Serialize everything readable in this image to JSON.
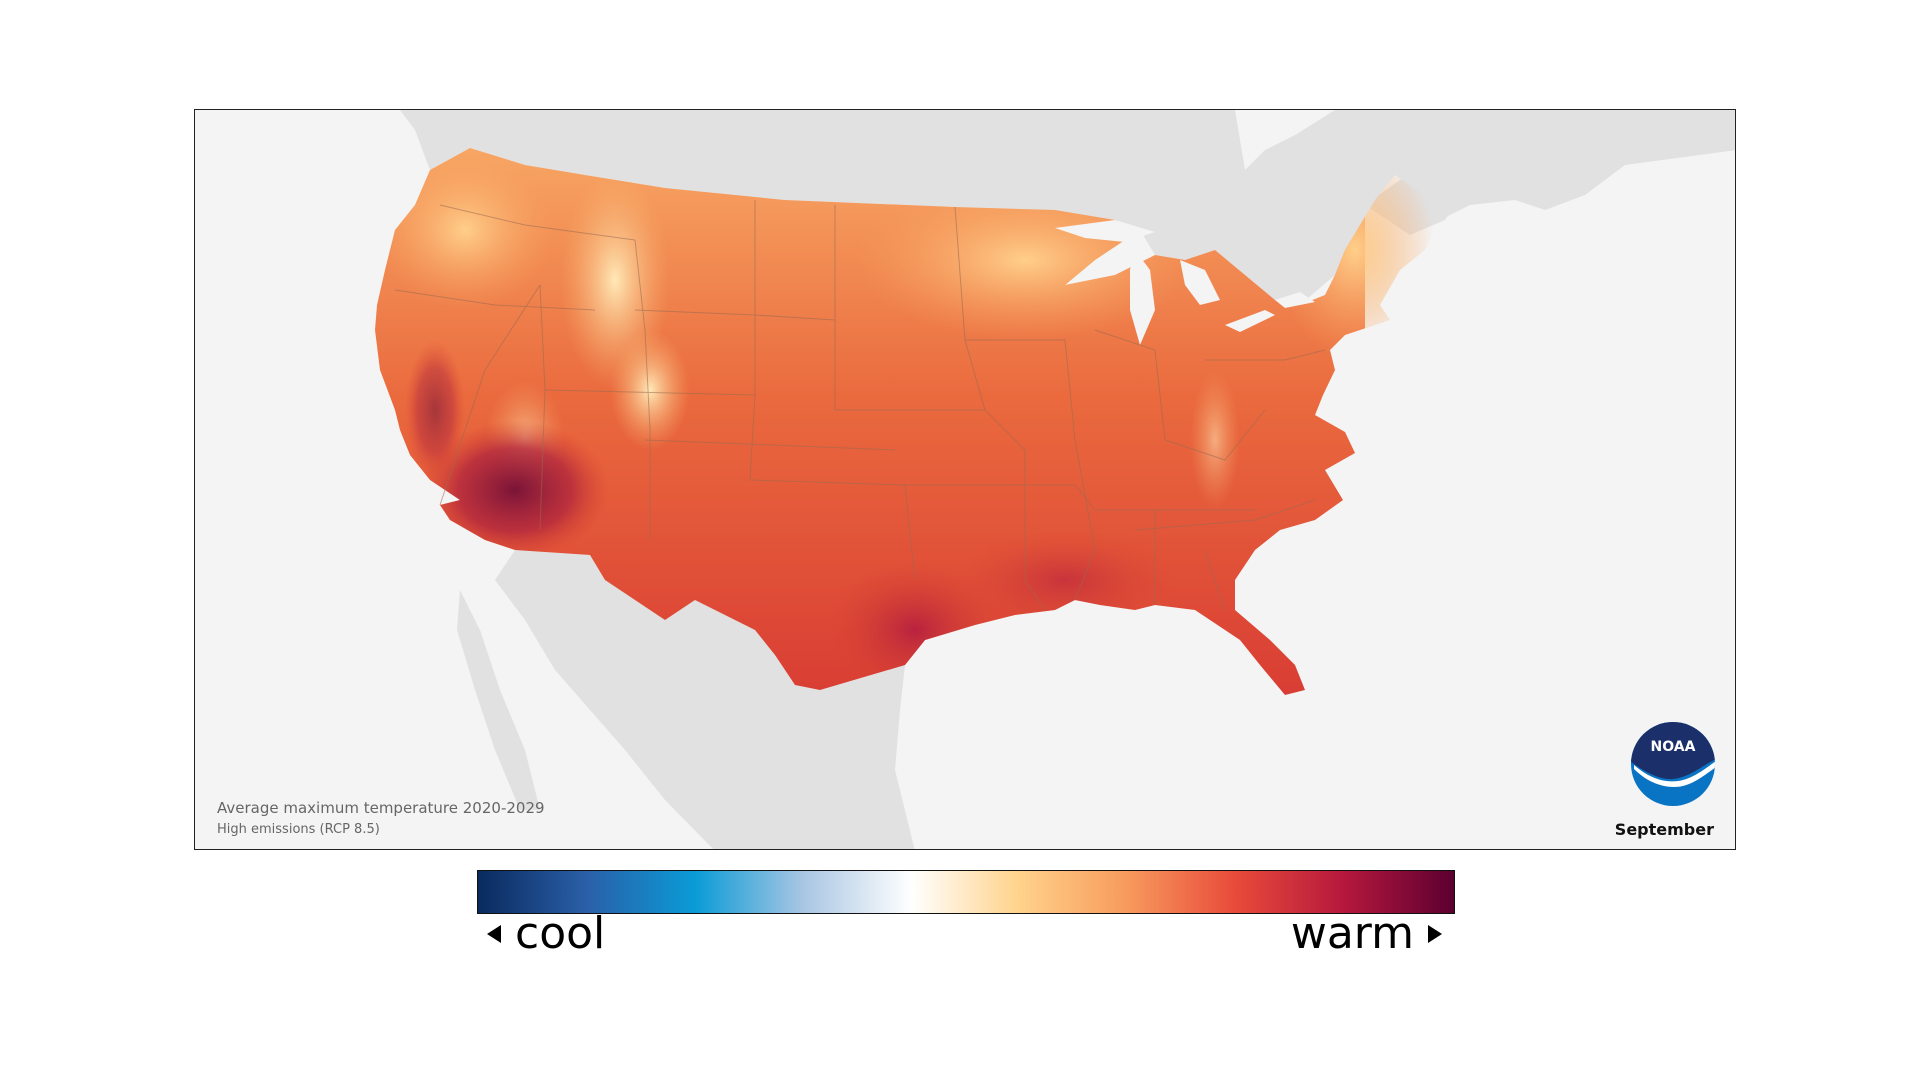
{
  "map": {
    "caption_title": "Average maximum temperature 2020-2029",
    "caption_subtitle": "High emissions (RCP 8.5)",
    "month": "September",
    "logo_text": "NOAA",
    "colors": {
      "land_background": "#e1e1e1",
      "water": "#f4f4f4",
      "state_border": "#9a6a50"
    }
  },
  "legend": {
    "cool_label": "cool",
    "warm_label": "warm",
    "gradient_stops": [
      "#0a2a5e",
      "#2a5fa8",
      "#0a9bd6",
      "#a9c6e3",
      "#ffffff",
      "#ffd28a",
      "#f7995c",
      "#e8493a",
      "#b4173d",
      "#5c0030"
    ]
  }
}
